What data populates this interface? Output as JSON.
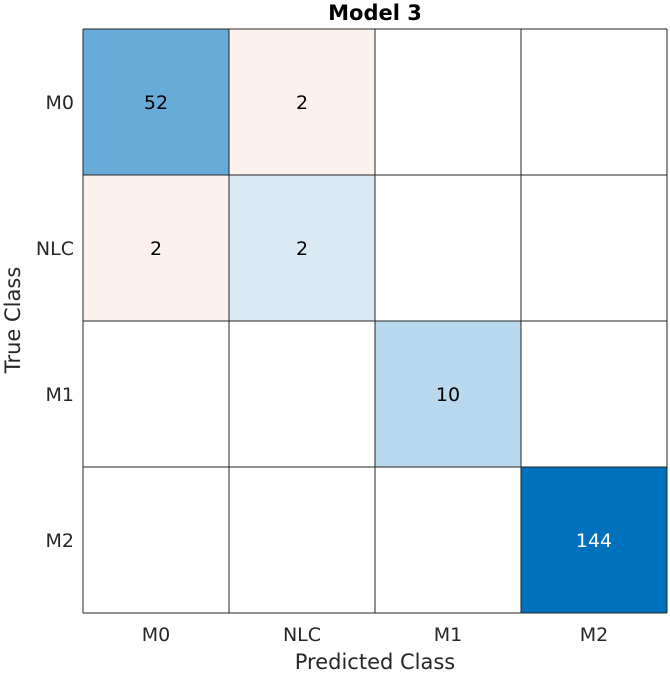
{
  "chart_data": {
    "type": "heatmap",
    "title": "Model 3",
    "xlabel": "Predicted Class",
    "ylabel": "True Class",
    "x_categories": [
      "M0",
      "NLC",
      "M1",
      "M2"
    ],
    "y_categories": [
      "M0",
      "NLC",
      "M1",
      "M2"
    ],
    "values": [
      [
        52,
        2,
        null,
        null
      ],
      [
        2,
        2,
        null,
        null
      ],
      [
        null,
        null,
        10,
        null
      ],
      [
        null,
        null,
        null,
        144
      ]
    ],
    "colors": {
      "diagonal_max": "#0072bd",
      "diagonal_min": "#ffffff",
      "off_diagonal_max": "#d95319",
      "grid_line": "#262626",
      "label_dark": "#000000",
      "label_light": "#ffffff"
    }
  }
}
